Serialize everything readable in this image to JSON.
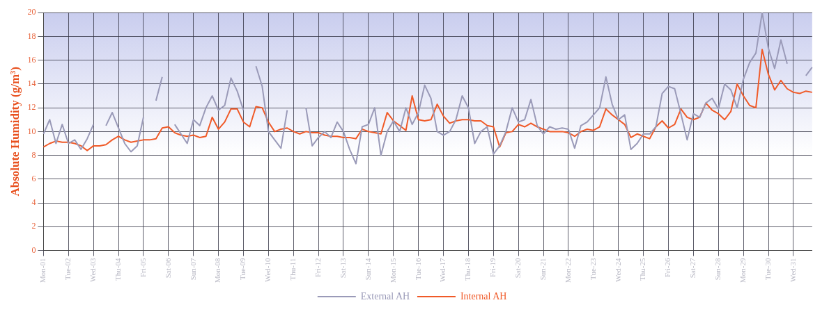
{
  "chart_data": {
    "type": "line",
    "ylabel": "Absolute Humidity (g/m³)",
    "ylim": [
      0,
      20
    ],
    "yticks": [
      0,
      2,
      4,
      6,
      8,
      10,
      12,
      14,
      16,
      18,
      20
    ],
    "categories": [
      "Mon-01",
      null,
      null,
      null,
      "Tue-02",
      null,
      null,
      null,
      "Wed-03",
      null,
      null,
      null,
      "Thu-04",
      null,
      null,
      null,
      "Fri-05",
      null,
      null,
      null,
      "Sat-06",
      null,
      null,
      null,
      "Sun-07",
      null,
      null,
      null,
      "Mon-08",
      null,
      null,
      null,
      "Tue-09",
      null,
      null,
      null,
      "Wed-10",
      null,
      null,
      null,
      "Thu-11",
      null,
      null,
      null,
      "Fri-12",
      null,
      null,
      null,
      "Sat-13",
      null,
      null,
      null,
      "Sun-14",
      null,
      null,
      null,
      "Mon-15",
      null,
      null,
      null,
      "Tue-16",
      null,
      null,
      null,
      "Wed-17",
      null,
      null,
      null,
      "Thu-18",
      null,
      null,
      null,
      "Fri-19",
      null,
      null,
      null,
      "Sat-20",
      null,
      null,
      null,
      "Sun-21",
      null,
      null,
      null,
      "Mon-22",
      null,
      null,
      null,
      "Tue-23",
      null,
      null,
      null,
      "Wed-24",
      null,
      null,
      null,
      "Thu-25",
      null,
      null,
      null,
      "Fri-26",
      null,
      null,
      null,
      "Sat-27",
      null,
      null,
      null,
      "Sun-28",
      null,
      null,
      null,
      "Mon-29",
      null,
      null,
      null,
      "Tue-30",
      null,
      null,
      null,
      "Wed-31",
      null,
      null,
      null
    ],
    "grid": true,
    "legend": "bottom",
    "marker": "none",
    "line_style": "solid",
    "series": [
      {
        "name": "External AH",
        "color": "#9a9ab8",
        "values": [
          9.8,
          11.0,
          9.0,
          10.6,
          9.0,
          9.3,
          8.5,
          9.4,
          10.6,
          null,
          10.5,
          11.6,
          10.3,
          9.0,
          8.3,
          8.8,
          11.2,
          null,
          12.6,
          14.6,
          null,
          10.6,
          9.8,
          9.0,
          11.0,
          10.5,
          12.0,
          13.0,
          11.8,
          12.2,
          14.5,
          13.4,
          11.8,
          null,
          15.5,
          13.8,
          10.0,
          9.3,
          8.6,
          11.8,
          null,
          null,
          12.0,
          8.8,
          9.5,
          10.0,
          9.5,
          10.8,
          10.0,
          8.5,
          7.3,
          10.4,
          10.6,
          12.0,
          8.0,
          10.0,
          10.9,
          10.0,
          12.0,
          10.6,
          11.6,
          13.9,
          12.8,
          10.0,
          9.7,
          10.0,
          11.0,
          13.0,
          12.0,
          9.0,
          10.0,
          10.4,
          8.1,
          8.8,
          10.0,
          12.0,
          10.8,
          11.0,
          12.7,
          10.5,
          9.8,
          10.4,
          10.2,
          10.3,
          10.2,
          8.6,
          10.5,
          10.8,
          11.4,
          12.0,
          14.6,
          12.3,
          11.0,
          11.4,
          8.5,
          9.0,
          9.8,
          9.8,
          10.4,
          13.2,
          13.8,
          13.6,
          11.5,
          9.3,
          11.5,
          11.2,
          12.4,
          12.8,
          11.9,
          14.0,
          13.5,
          12.0,
          14.4,
          15.8,
          16.6,
          20.0,
          17.0,
          15.3,
          17.7,
          15.7,
          null,
          null,
          14.7,
          15.4
        ]
      },
      {
        "name": "Internal AH",
        "color": "#f05a28",
        "values": [
          8.7,
          9.0,
          9.2,
          9.1,
          9.1,
          9.0,
          8.8,
          8.4,
          8.8,
          8.8,
          8.9,
          9.3,
          9.6,
          9.3,
          9.1,
          9.2,
          9.3,
          9.3,
          9.4,
          10.3,
          10.4,
          9.9,
          9.7,
          9.6,
          9.7,
          9.5,
          9.6,
          11.2,
          10.2,
          10.8,
          11.9,
          11.9,
          10.8,
          10.4,
          12.1,
          12.0,
          10.8,
          10.0,
          10.2,
          10.3,
          10.0,
          9.8,
          10.0,
          9.9,
          9.9,
          9.7,
          9.6,
          9.6,
          9.5,
          9.5,
          9.4,
          10.2,
          10.0,
          9.9,
          9.8,
          11.6,
          10.9,
          10.5,
          10.1,
          13.0,
          11.0,
          10.9,
          11.0,
          12.3,
          11.3,
          10.7,
          10.9,
          11.0,
          11.0,
          10.9,
          10.9,
          10.5,
          10.4,
          8.7,
          9.9,
          10.0,
          10.6,
          10.4,
          10.7,
          10.4,
          10.2,
          10.0,
          10.0,
          10.0,
          9.9,
          9.6,
          10.0,
          10.2,
          10.1,
          10.4,
          11.9,
          11.4,
          11.0,
          10.6,
          9.5,
          9.8,
          9.6,
          9.4,
          10.4,
          10.9,
          10.3,
          10.6,
          11.9,
          11.2,
          11.0,
          11.2,
          12.4,
          11.8,
          11.5,
          11.0,
          11.7,
          14.0,
          13.0,
          12.2,
          12.0,
          16.9,
          14.8,
          13.5,
          14.3,
          13.6,
          13.3,
          13.2,
          13.4,
          13.3
        ]
      }
    ]
  }
}
